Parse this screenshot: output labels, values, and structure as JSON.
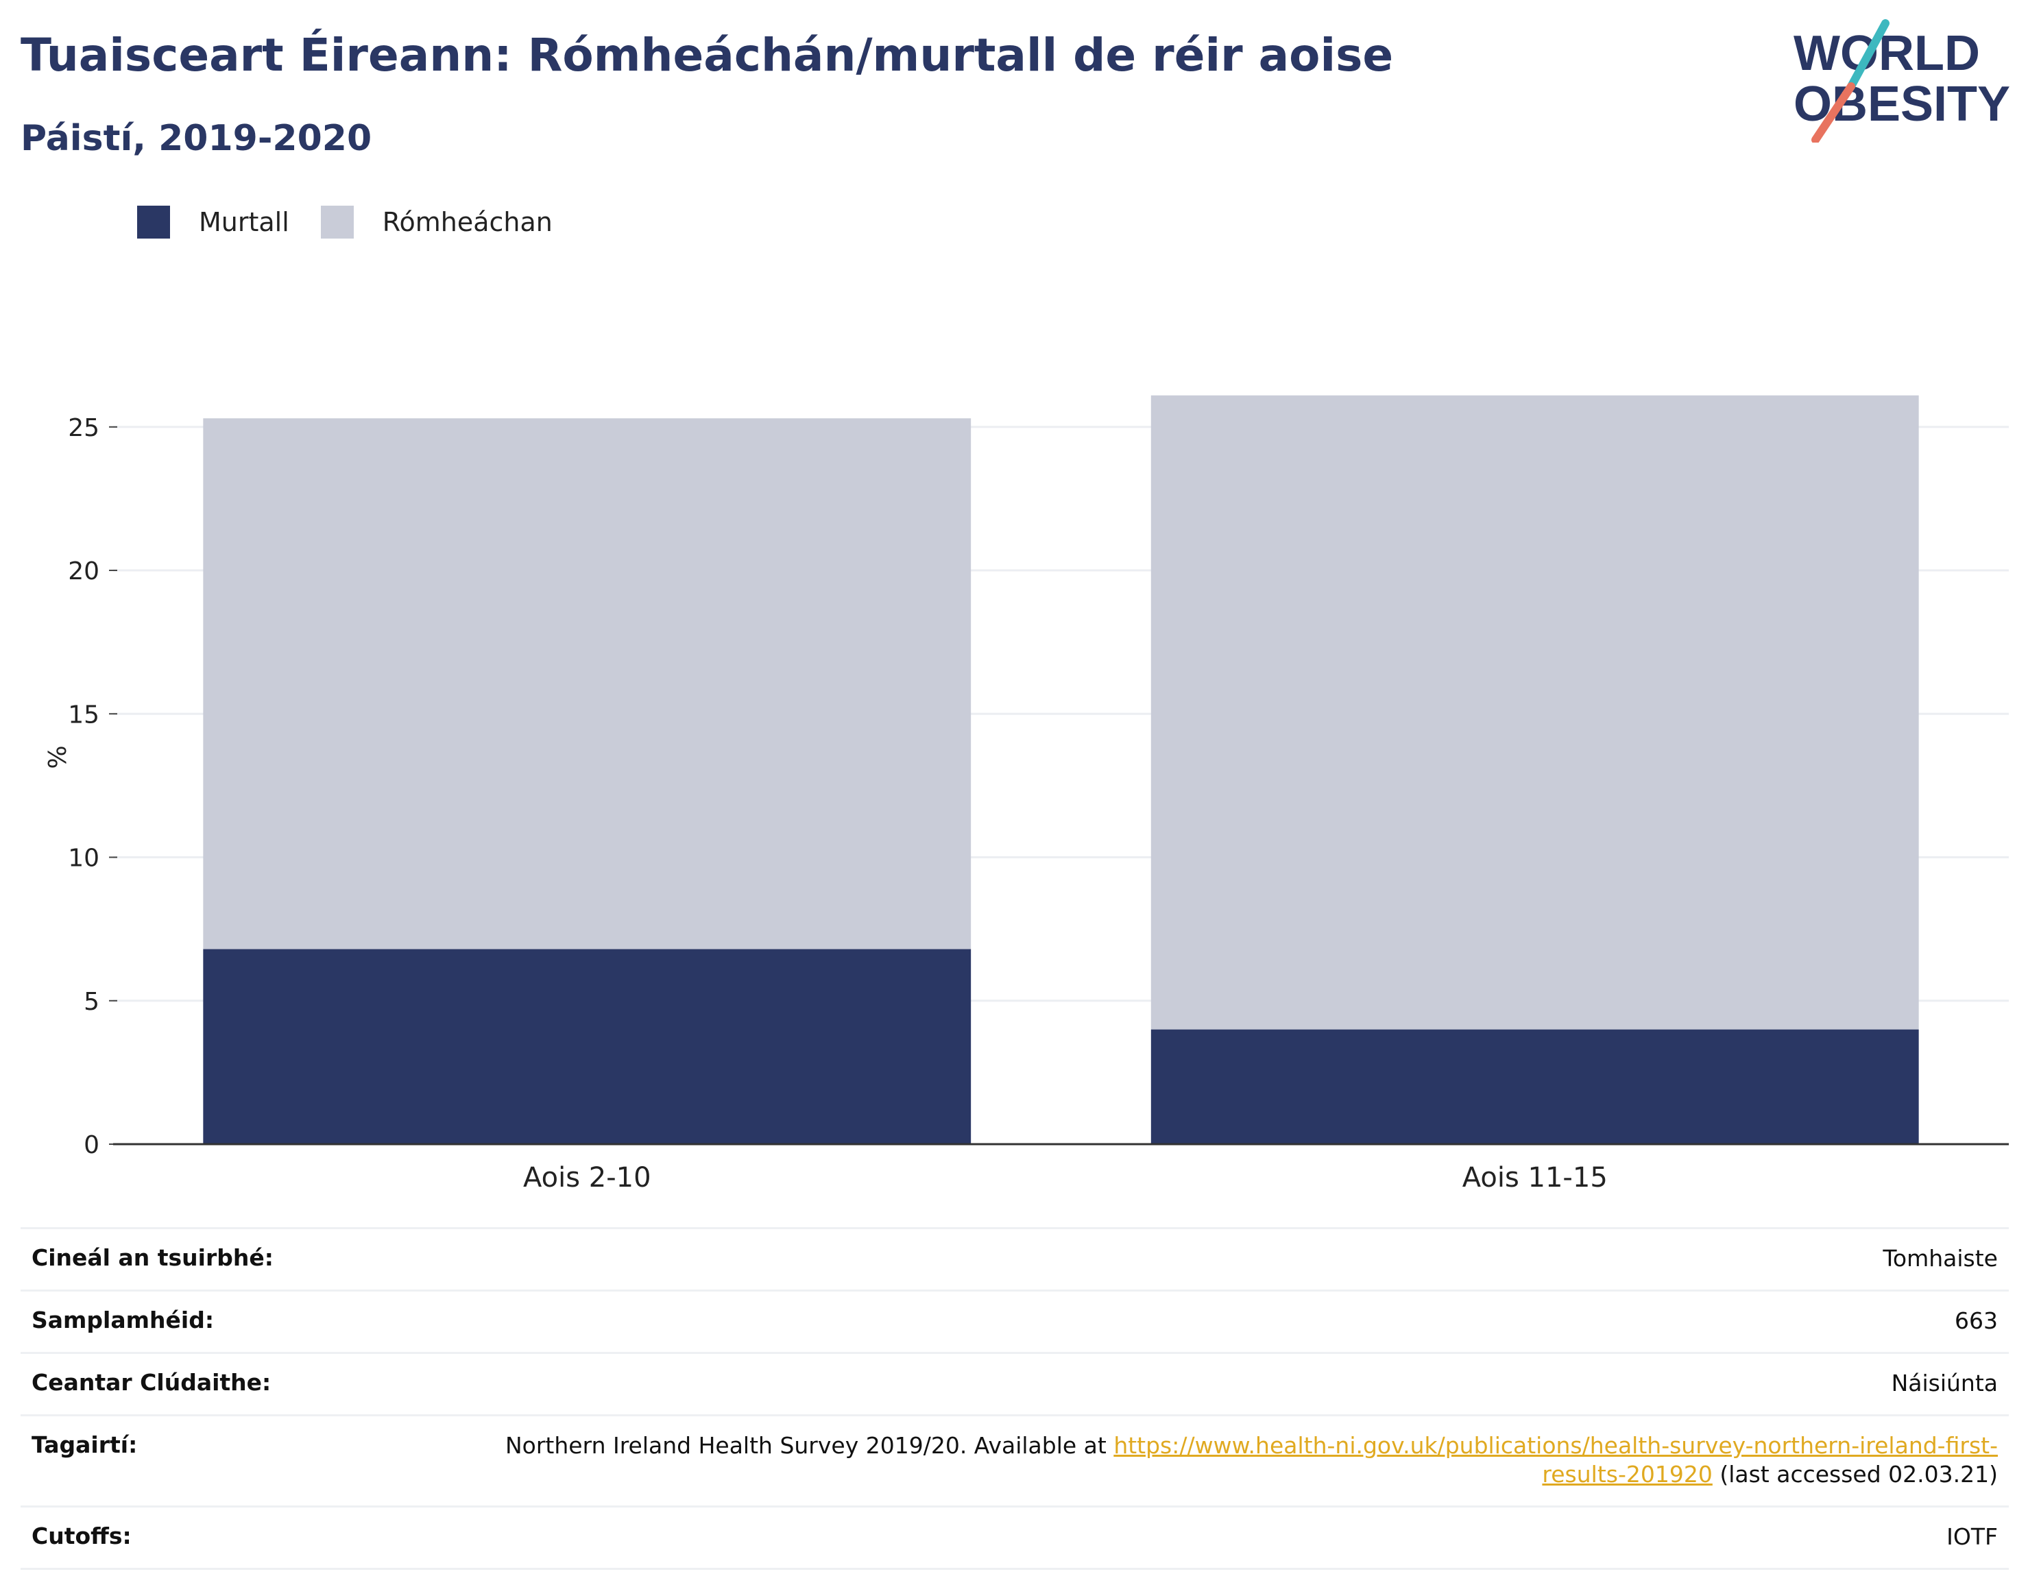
{
  "header": {
    "title": "Tuaisceart Éireann: Rómheáchán/murtall de réir aoise",
    "subtitle": "Páistí, 2019-2020"
  },
  "logo": {
    "line1": "WORLD",
    "line2": "OBESITY",
    "name": "world-obesity-logo"
  },
  "colors": {
    "murtall": "#2a3764",
    "romheachan": "#c9ccd8",
    "title": "#2a3764",
    "link": "#e0a920"
  },
  "legend": [
    {
      "label": "Murtall",
      "color": "#2a3764"
    },
    {
      "label": "Rómheáchan",
      "color": "#c9ccd8"
    }
  ],
  "chart_data": {
    "type": "bar",
    "stacked": true,
    "categories": [
      "Aois 2-10",
      "Aois 11-15"
    ],
    "series": [
      {
        "name": "Murtall",
        "values": [
          6.8,
          4.0
        ]
      },
      {
        "name": "Rómheáchan",
        "values": [
          18.5,
          22.1
        ]
      }
    ],
    "ylabel": "%",
    "ylim": [
      0,
      26.5
    ],
    "yticks": [
      0,
      5,
      10,
      15,
      20,
      25
    ],
    "grid": true,
    "legend_position": "top-left"
  },
  "info": {
    "rows": [
      {
        "label": "Cineál an tsuirbhé:",
        "value": "Tomhaiste"
      },
      {
        "label": "Samplamhéid:",
        "value": "663"
      },
      {
        "label": "Ceantar Clúdaithe:",
        "value": "Náisiúnta"
      }
    ],
    "reference": {
      "label": "Tagairtí:",
      "text_before": "Northern Ireland Health Survey 2019/20. Available at ",
      "link": "https://www.health-ni.gov.uk/publications/health-survey-northern-ireland-first-results-201920",
      "text_after": " (last accessed 02.03.21)"
    },
    "cutoffs": {
      "label": "Cutoffs:",
      "value": "IOTF"
    }
  }
}
